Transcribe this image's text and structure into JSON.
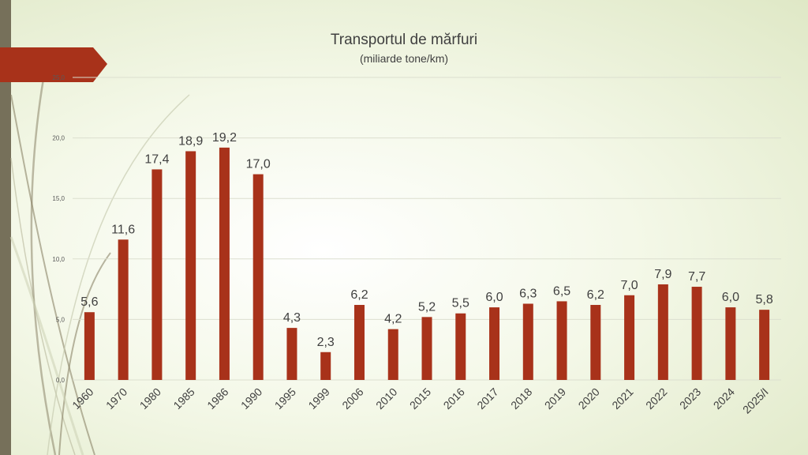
{
  "chart_data": {
    "type": "bar",
    "title": "Transportul de mărfuri",
    "subtitle": "(miliarde tone/km)",
    "xlabel": "",
    "ylabel": "",
    "categories": [
      "1960",
      "1970",
      "1980",
      "1985",
      "1986",
      "1990",
      "1995",
      "1999",
      "2006",
      "2010",
      "2015",
      "2016",
      "2017",
      "2018",
      "2019",
      "2020",
      "2021",
      "2022",
      "2023",
      "2024",
      "2025/I"
    ],
    "values": [
      5.6,
      11.6,
      17.4,
      18.9,
      19.2,
      17.0,
      4.3,
      2.3,
      6.2,
      4.2,
      5.2,
      5.5,
      6.0,
      6.3,
      6.5,
      6.2,
      7.0,
      7.9,
      7.7,
      6.0,
      5.8
    ],
    "value_labels": [
      "5,6",
      "11,6",
      "17,4",
      "18,9",
      "19,2",
      "17,0",
      "4,3",
      "2,3",
      "6,2",
      "4,2",
      "5,2",
      "5,5",
      "6,0",
      "6,3",
      "6,5",
      "6,2",
      "7,0",
      "7,9",
      "7,7",
      "6,0",
      "5,8"
    ],
    "yticks": [
      0,
      5,
      10,
      15,
      20,
      25
    ],
    "ytick_labels": [
      "0,0",
      "5,0",
      "10,0",
      "15,0",
      "20,0",
      "25,0"
    ],
    "ylim": [
      0,
      25
    ],
    "grid": true,
    "legend": "none",
    "bar_color": "#a8321a",
    "accent_color": "#a8321a",
    "sidebar_color": "#76705a"
  }
}
